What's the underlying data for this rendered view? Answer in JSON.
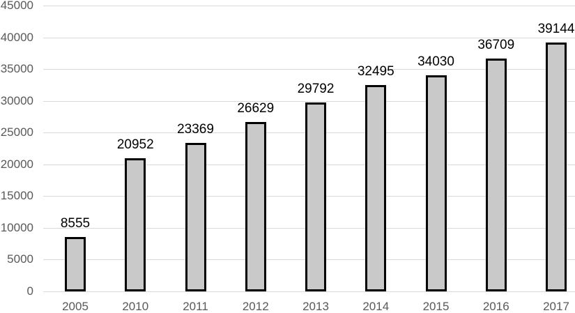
{
  "chart_data": {
    "type": "bar",
    "title": "",
    "xlabel": "",
    "ylabel": "",
    "categories": [
      "2005",
      "2010",
      "2011",
      "2012",
      "2013",
      "2014",
      "2015",
      "2016",
      "2017"
    ],
    "values": [
      8555,
      20952,
      23369,
      26629,
      29792,
      32495,
      34030,
      36709,
      39144
    ],
    "data_labels": [
      "8555",
      "20952",
      "23369",
      "26629",
      "29792",
      "32495",
      "34030",
      "36709",
      "39144"
    ],
    "yticks": [
      0,
      5000,
      10000,
      15000,
      20000,
      25000,
      30000,
      35000,
      40000,
      45000
    ],
    "ytick_labels": [
      "0",
      "5000",
      "10000",
      "15000",
      "20000",
      "25000",
      "30000",
      "35000",
      "40000",
      "45000"
    ],
    "ylim": [
      0,
      45000
    ],
    "grid": "horizontal",
    "legend": "none",
    "colors": {
      "bar_fill": "#c9c9c9",
      "bar_border": "#000000",
      "gridline": "#d9d9d9",
      "axis_text": "#595959",
      "data_label_text": "#000000",
      "background": "#ffffff"
    }
  }
}
